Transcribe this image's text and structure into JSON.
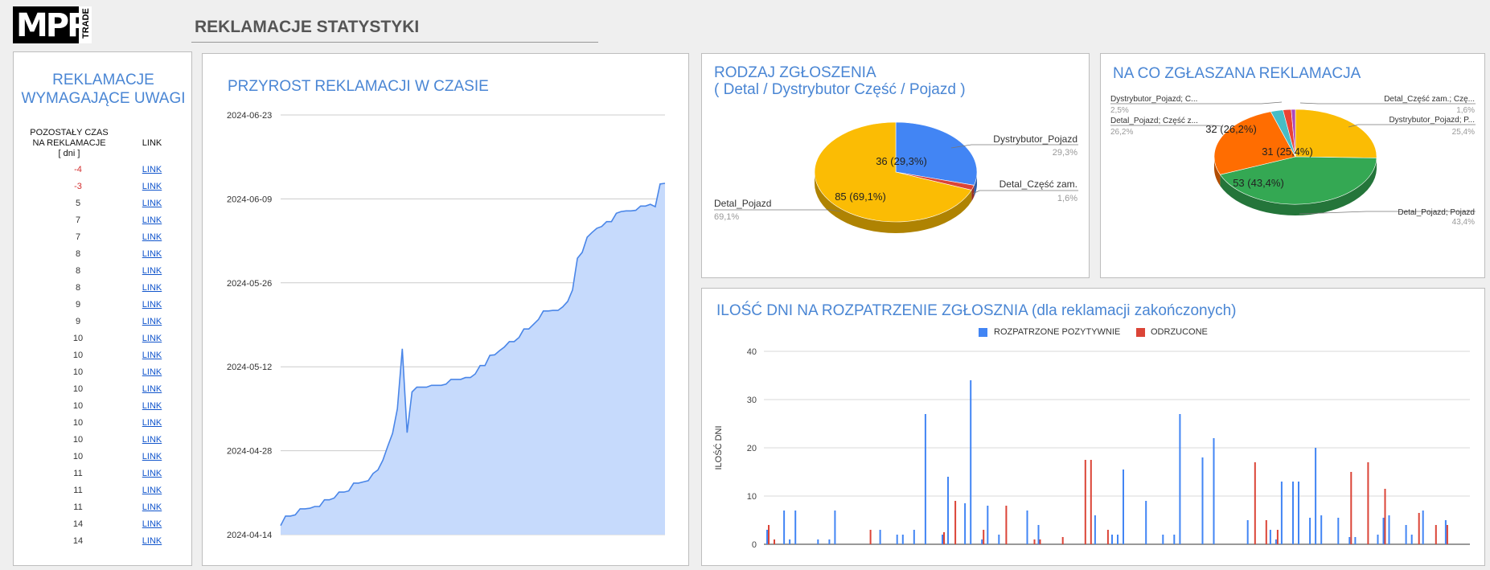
{
  "logo": {
    "main": "MPP",
    "side": "TRADE"
  },
  "page_title": "REKLAMACJE STATYSTYKI",
  "attention": {
    "title_line1": "REKLAMACJE",
    "title_line2": "WYMAGAJĄCE UWAGI",
    "col1_line1": "POZOSTAŁY CZAS",
    "col1_line2": "NA REKLAMACJE",
    "col1_line3": "[ dni ]",
    "col2": "LINK",
    "rows": [
      {
        "days": "-4",
        "link": "LINK"
      },
      {
        "days": "-3",
        "link": "LINK"
      },
      {
        "days": "5",
        "link": "LINK"
      },
      {
        "days": "7",
        "link": "LINK"
      },
      {
        "days": "7",
        "link": "LINK"
      },
      {
        "days": "8",
        "link": "LINK"
      },
      {
        "days": "8",
        "link": "LINK"
      },
      {
        "days": "8",
        "link": "LINK"
      },
      {
        "days": "9",
        "link": "LINK"
      },
      {
        "days": "9",
        "link": "LINK"
      },
      {
        "days": "10",
        "link": "LINK"
      },
      {
        "days": "10",
        "link": "LINK"
      },
      {
        "days": "10",
        "link": "LINK"
      },
      {
        "days": "10",
        "link": "LINK"
      },
      {
        "days": "10",
        "link": "LINK"
      },
      {
        "days": "10",
        "link": "LINK"
      },
      {
        "days": "10",
        "link": "LINK"
      },
      {
        "days": "10",
        "link": "LINK"
      },
      {
        "days": "11",
        "link": "LINK"
      },
      {
        "days": "11",
        "link": "LINK"
      },
      {
        "days": "11",
        "link": "LINK"
      },
      {
        "days": "14",
        "link": "LINK"
      },
      {
        "days": "14",
        "link": "LINK"
      }
    ]
  },
  "chart_data": [
    {
      "type": "area",
      "title": "PRZYROST REKLAMACJI W CZASIE",
      "y_tick_labels": [
        "2024-04-14",
        "2024-04-28",
        "2024-05-12",
        "2024-05-26",
        "2024-06-09",
        "2024-06-23"
      ],
      "y_tick_values": [
        0,
        14,
        28,
        42,
        56,
        70
      ],
      "color": "#4a86e8",
      "values": [
        1.5,
        3.1,
        3.1,
        3.3,
        4.3,
        4.3,
        4.4,
        4.7,
        4.7,
        5.8,
        5.8,
        6.1,
        7.1,
        7.1,
        7.3,
        8.6,
        8.6,
        8.8,
        9.0,
        10.2,
        10.8,
        12.4,
        14.7,
        16.9,
        21.0,
        31.0,
        17.0,
        23.8,
        24.6,
        24.6,
        24.6,
        24.9,
        24.9,
        24.9,
        25.1,
        25.9,
        25.9,
        25.9,
        26.2,
        26.2,
        26.8,
        28.2,
        28.2,
        29.9,
        30.0,
        30.7,
        31.3,
        32.2,
        32.2,
        32.9,
        34.3,
        34.3,
        35.1,
        35.9,
        37.3,
        37.3,
        37.4,
        37.4,
        38.0,
        38.9,
        40.8,
        46.1,
        47.1,
        49.6,
        50.4,
        51.1,
        51.4,
        52.2,
        52.2,
        53.6,
        53.9,
        54.0,
        54.0,
        54.1,
        54.8,
        54.8,
        55.1,
        54.7,
        58.5,
        58.6
      ],
      "ylim": [
        0,
        70
      ]
    },
    {
      "type": "pie",
      "title_line1": "RODZAJ ZGŁOSZENIA",
      "title_line2": "( Detal / Dystrybutor Część / Pojazd )",
      "slices": [
        {
          "label": "Dystrybutor_Pojazd",
          "value": 36,
          "percent": "29,3%",
          "color": "#4285f4",
          "slice_label": "36 (29,3%)"
        },
        {
          "label": "Detal_Część zam.",
          "value": 2,
          "percent": "1,6%",
          "color": "#db4437",
          "slice_label": ""
        },
        {
          "label": "Detal_Pojazd",
          "value": 85,
          "percent": "69,1%",
          "color": "#fbbc04",
          "slice_label": "85 (69,1%)"
        }
      ]
    },
    {
      "type": "pie",
      "title": "NA CO ZGŁASZANA REKLAMACJA",
      "slices": [
        {
          "label": "Dystrybutor_Pojazd; P...",
          "value": 31,
          "percent": "25,4%",
          "color": "#fbbc04",
          "slice_label": "31 (25,4%)"
        },
        {
          "label": "Detal_Pojazd; Pojazd",
          "value": 53,
          "percent": "43,4%",
          "color": "#34a853",
          "slice_label": "53 (43,4%)"
        },
        {
          "label": "Detal_Pojazd; Część z...",
          "value": 32,
          "percent": "26,2%",
          "color": "#ff6d01",
          "slice_label": "32 (26,2%)"
        },
        {
          "label": "Dystrybutor_Pojazd; C...",
          "value": 3,
          "percent": "2,5%",
          "color": "#46bdc6",
          "slice_label": ""
        },
        {
          "label": "Detal_Część zam.; Czę...",
          "value": 2,
          "percent": "1,6%",
          "color": "#ea4335",
          "slice_label": ""
        },
        {
          "label": "",
          "value": 1,
          "percent": "",
          "color": "#ab47bc",
          "slice_label": ""
        }
      ]
    },
    {
      "type": "bar",
      "title": "ILOŚĆ DNI NA ROZPATRZENIE ZGŁOSZNIA (dla reklamacji zakończonych)",
      "ylabel": "ILOŚĆ DNI",
      "ylim": [
        0,
        40
      ],
      "y_ticks": [
        "0",
        "10",
        "20",
        "30",
        "40"
      ],
      "series": [
        {
          "name": "ROZPATRZONE POZYTYWNIE",
          "color": "#4285f4",
          "values": [
            3,
            0,
            0,
            7,
            1,
            7,
            0,
            0,
            0,
            1,
            0,
            1,
            7,
            0,
            0,
            0,
            0,
            0,
            0,
            0,
            3,
            0,
            0,
            2,
            2,
            0,
            3,
            0,
            27,
            0,
            0,
            2,
            14,
            0,
            0,
            8.5,
            34,
            0,
            1,
            8,
            0,
            2,
            0,
            0,
            0,
            0,
            7,
            0,
            4,
            0,
            0,
            0,
            0,
            0,
            0,
            0,
            0,
            0,
            6,
            0,
            0,
            2,
            2,
            15.5,
            0,
            0,
            0,
            9,
            0,
            0,
            2,
            0,
            2,
            27,
            0,
            0,
            0,
            18,
            0,
            22,
            0,
            0,
            0,
            0,
            0,
            5,
            0,
            0,
            0,
            3,
            1,
            13,
            0,
            13,
            13,
            0,
            5.5,
            20,
            6,
            0,
            0,
            5.5,
            0,
            1.5,
            1.5,
            0,
            0,
            0,
            2,
            5.5,
            6,
            0,
            0,
            4,
            2,
            0,
            7,
            0,
            0,
            0,
            5,
            0,
            0,
            0
          ]
        },
        {
          "name": "ODRZUCONE",
          "color": "#db4437",
          "values": [
            4,
            1,
            0,
            0,
            0,
            0,
            0,
            0,
            0,
            0,
            0,
            0,
            0,
            0,
            0,
            0,
            0,
            0,
            3,
            0,
            0,
            0,
            0,
            0,
            0,
            0,
            0,
            0,
            0,
            0,
            0,
            2.5,
            0,
            9,
            0,
            0,
            0,
            0,
            3,
            0,
            0,
            0,
            8,
            0,
            0,
            0,
            0,
            1,
            1,
            0,
            0,
            0,
            1.5,
            0,
            0,
            0,
            17.5,
            17.5,
            0,
            0,
            3,
            0,
            0,
            0,
            0,
            0,
            0,
            0,
            0,
            0,
            0,
            0,
            0,
            0,
            0,
            0,
            0,
            0,
            0,
            0,
            0,
            0,
            0,
            0,
            0,
            0,
            17,
            0,
            5,
            0,
            3,
            0,
            0,
            0,
            0,
            0,
            0,
            0,
            0,
            0,
            0,
            0,
            0,
            15,
            0,
            0,
            17,
            0,
            0,
            11.5,
            0,
            0,
            0,
            0,
            0,
            6.5,
            0,
            0,
            4,
            0,
            4,
            0,
            0
          ]
        }
      ]
    }
  ]
}
